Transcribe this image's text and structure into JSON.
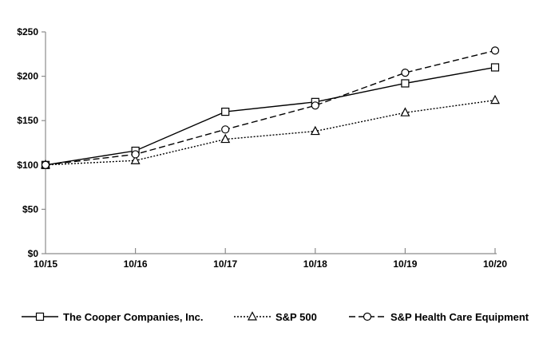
{
  "chart_data": {
    "type": "line",
    "title": "",
    "xlabel": "",
    "ylabel": "",
    "x_labels": [
      "10/15",
      "10/16",
      "10/17",
      "10/18",
      "10/19",
      "10/20"
    ],
    "y_ticks": [
      "$0",
      "$50",
      "$100",
      "$150",
      "$200",
      "$250"
    ],
    "y_tick_values": [
      0,
      50,
      100,
      150,
      200,
      250
    ],
    "ylim": [
      0,
      250
    ],
    "grid": false,
    "legend_position": "bottom",
    "axis_color": "#8c8c8c",
    "line_color": "#000000",
    "text_color": "#000000",
    "series": [
      {
        "name": "The Cooper Companies, Inc.",
        "values": [
          100,
          116,
          160,
          171,
          192,
          210
        ],
        "marker": "square",
        "line_style": "solid"
      },
      {
        "name": "S&P 500",
        "values": [
          100,
          105,
          129,
          138,
          159,
          173
        ],
        "marker": "triangle",
        "line_style": "dotted"
      },
      {
        "name": "S&P Health Care Equipment",
        "values": [
          100,
          112,
          140,
          167,
          204,
          229
        ],
        "marker": "circle",
        "line_style": "dashed"
      }
    ]
  },
  "legend": {
    "items": [
      {
        "label": "The Cooper Companies, Inc."
      },
      {
        "label": "S&P 500"
      },
      {
        "label": "S&P Health Care Equipment"
      }
    ]
  }
}
